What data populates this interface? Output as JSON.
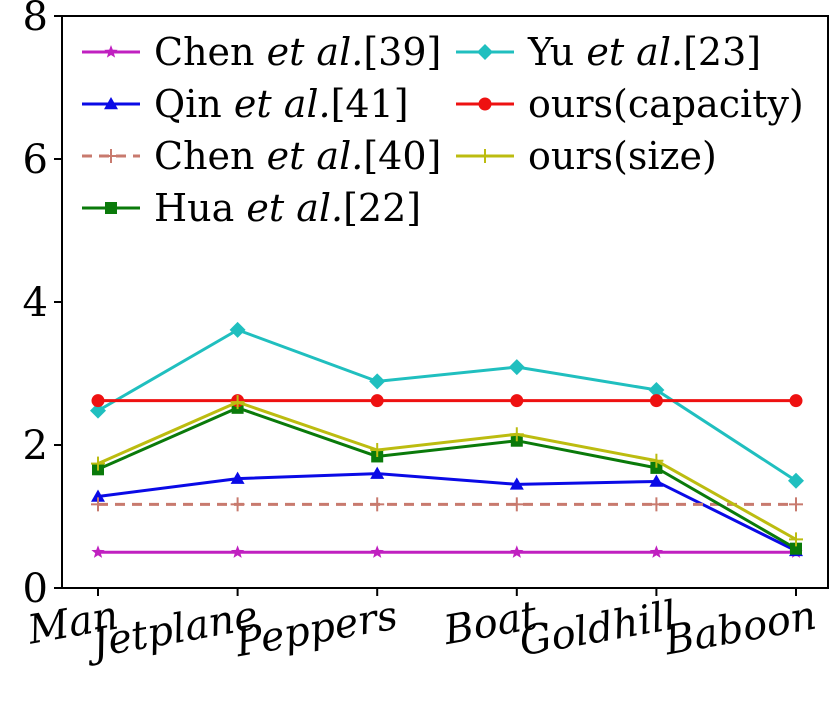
{
  "chart_data": {
    "type": "line",
    "categories": [
      "Man",
      "Jetplane",
      "Peppers",
      "Boat",
      "Goldhill",
      "Baboon"
    ],
    "ylim": [
      0,
      8
    ],
    "yticks": [
      "0",
      "2",
      "4",
      "6",
      "8"
    ],
    "grid": false,
    "legend_position": "top-left, two columns",
    "series": [
      {
        "name": "Chen et al.[39]",
        "name_prefix": "Chen ",
        "name_italic": "et al.",
        "name_suffix": "[39]",
        "color": "#c020c0",
        "marker": "star",
        "dashed": false,
        "values": [
          0.5,
          0.5,
          0.5,
          0.5,
          0.5,
          0.5
        ]
      },
      {
        "name": "Qin et al.[41]",
        "name_prefix": "Qin ",
        "name_italic": "et al.",
        "name_suffix": "[41]",
        "color": "#0a0ae6",
        "marker": "triangle",
        "dashed": false,
        "values": [
          1.28,
          1.53,
          1.6,
          1.45,
          1.49,
          0.52
        ]
      },
      {
        "name": "Chen et al.[40]",
        "name_prefix": "Chen ",
        "name_italic": "et al.",
        "name_suffix": "[40]",
        "color": "#c87a6e",
        "marker": "plus",
        "dashed": true,
        "values": [
          1.17,
          1.17,
          1.17,
          1.17,
          1.17,
          1.17
        ]
      },
      {
        "name": "Hua et al.[22]",
        "name_prefix": "Hua ",
        "name_italic": "et al.",
        "name_suffix": "[22]",
        "color": "#0a7a0a",
        "marker": "square",
        "dashed": false,
        "values": [
          1.66,
          2.52,
          1.84,
          2.06,
          1.68,
          0.55
        ]
      },
      {
        "name": "Yu et al.[23]",
        "name_prefix": "Yu ",
        "name_italic": "et al.",
        "name_suffix": "[23]",
        "color": "#20bfbf",
        "marker": "diamond",
        "dashed": false,
        "values": [
          2.48,
          3.61,
          2.89,
          3.09,
          2.77,
          1.5
        ]
      },
      {
        "name": "ours(capacity)",
        "name_prefix": "ours(capacity)",
        "name_italic": "",
        "name_suffix": "",
        "color": "#ee1111",
        "marker": "circle",
        "dashed": false,
        "values": [
          2.62,
          2.62,
          2.62,
          2.62,
          2.62,
          2.62
        ]
      },
      {
        "name": "ours(size)",
        "name_prefix": "ours(size)",
        "name_italic": "",
        "name_suffix": "",
        "color": "#bcbc10",
        "marker": "plus",
        "dashed": false,
        "values": [
          1.74,
          2.6,
          1.93,
          2.15,
          1.78,
          0.68
        ]
      }
    ]
  }
}
